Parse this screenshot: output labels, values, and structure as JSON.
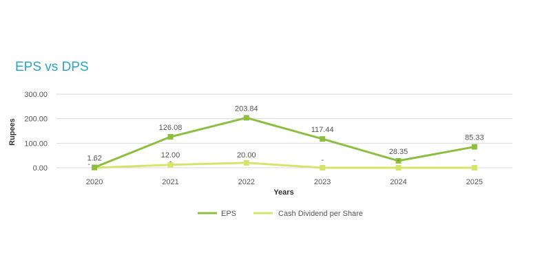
{
  "title": "EPS vs DPS",
  "chart_data": {
    "type": "line",
    "title": "EPS vs DPS",
    "xlabel": "Years",
    "ylabel": "Rupees",
    "x": [
      "2020",
      "2021",
      "2022",
      "2023",
      "2024",
      "2025"
    ],
    "ylim": [
      0,
      300
    ],
    "yticks": [
      "0.00",
      "100.00",
      "200.00",
      "300.00"
    ],
    "grid": true,
    "legend_position": "bottom",
    "series": [
      {
        "name": "EPS",
        "color": "#8cbe3f",
        "values": [
          1.62,
          126.08,
          203.84,
          117.44,
          28.35,
          85.33
        ],
        "labels": [
          "1.62",
          "126.08",
          "203.84",
          "117.44",
          "28.35",
          "85.33"
        ]
      },
      {
        "name": "Cash Dividend per Share",
        "color": "#d6e46a",
        "values": [
          0,
          12.0,
          20.0,
          0,
          0,
          0
        ],
        "labels": [
          "-",
          "12.00",
          "20.00",
          "-",
          "-",
          "-"
        ]
      }
    ],
    "extra_markers": [
      "-",
      "-"
    ]
  }
}
